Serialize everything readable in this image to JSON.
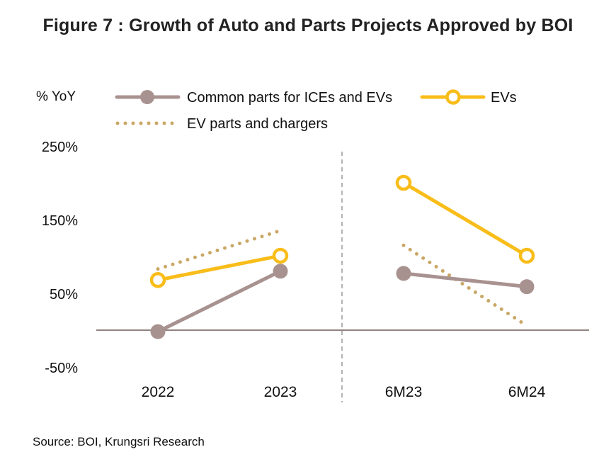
{
  "title": "Figure 7 : Growth of Auto and Parts Projects Approved by BOI",
  "source": "Source: BOI, Krungsri Research",
  "colors": {
    "common": "#a8928f",
    "evs": "#f9bd1a",
    "ev_parts": "#c9a765",
    "axis": "#6b5b58",
    "divider": "#9a9a9a"
  },
  "chart_data": {
    "type": "line",
    "ylabel": "% YoY",
    "ylim": [
      -50,
      250
    ],
    "yticks": [
      250,
      150,
      50,
      -50
    ],
    "ytick_labels": [
      "250%",
      "150%",
      "50%",
      "-50%"
    ],
    "categories": [
      "2022",
      "2023",
      "6M23",
      "6M24"
    ],
    "groups": [
      [
        "2022",
        "2023"
      ],
      [
        "6M23",
        "6M24"
      ]
    ],
    "grid": false,
    "legend": "top",
    "series": [
      {
        "name": "Common parts for ICEs and EVs",
        "style": "solid-filled-marker",
        "values": [
          -2,
          80,
          77,
          59
        ]
      },
      {
        "name": "EVs",
        "style": "solid-hollow-marker",
        "values": [
          68,
          101,
          200,
          101
        ]
      },
      {
        "name": "EV parts and chargers",
        "style": "dotted",
        "values": [
          83,
          135,
          115,
          6
        ]
      }
    ]
  }
}
